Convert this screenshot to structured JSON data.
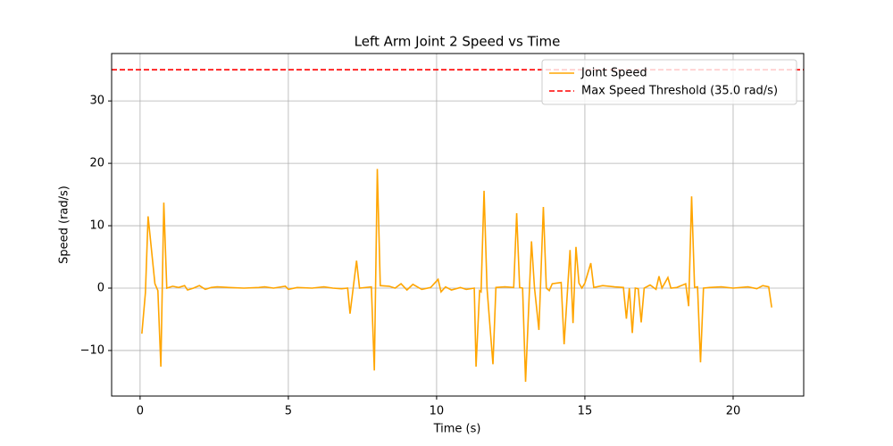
{
  "chart_data": {
    "type": "line",
    "title": "Left Arm Joint 2 Speed vs Time",
    "xlabel": "Time (s)",
    "ylabel": "Speed (rad/s)",
    "x": [
      0.06,
      0.18,
      0.27,
      0.5,
      0.6,
      0.7,
      0.8,
      0.9,
      1.1,
      1.3,
      1.5,
      1.6,
      1.8,
      2.0,
      2.2,
      2.4,
      2.6,
      3.0,
      3.5,
      4.0,
      4.2,
      4.5,
      4.9,
      5.0,
      5.3,
      5.8,
      6.2,
      6.5,
      6.8,
      7.0,
      7.08,
      7.3,
      7.4,
      7.8,
      7.9,
      8.0,
      8.1,
      8.4,
      8.6,
      8.8,
      9.0,
      9.2,
      9.5,
      9.8,
      10.05,
      10.15,
      10.3,
      10.5,
      10.8,
      11.0,
      11.27,
      11.33,
      11.45,
      11.5,
      11.6,
      11.7,
      11.9,
      12.0,
      12.3,
      12.6,
      12.7,
      12.8,
      12.9,
      13.0,
      13.2,
      13.3,
      13.45,
      13.6,
      13.7,
      13.8,
      13.9,
      14.2,
      14.3,
      14.5,
      14.6,
      14.7,
      14.8,
      14.9,
      15.0,
      15.2,
      15.3,
      15.6,
      16.0,
      16.3,
      16.4,
      16.5,
      16.6,
      16.7,
      16.8,
      16.9,
      17.0,
      17.2,
      17.4,
      17.5,
      17.6,
      17.8,
      17.9,
      18.1,
      18.4,
      18.5,
      18.6,
      18.7,
      18.8,
      18.9,
      19.0,
      19.2,
      19.6,
      20.0,
      20.5,
      20.8,
      21.0,
      21.2,
      21.3
    ],
    "series": [
      {
        "name": "Joint Speed",
        "color": "#ffa500",
        "values": [
          -7.3,
          -0.7,
          11.5,
          0.7,
          -0.4,
          -12.6,
          13.7,
          0,
          0.3,
          0.1,
          0.4,
          -0.3,
          0,
          0.4,
          -0.2,
          0.1,
          0.2,
          0.1,
          0,
          0.1,
          0.2,
          0,
          0.3,
          -0.2,
          0.1,
          0,
          0.2,
          0,
          -0.1,
          0,
          -4.1,
          4.4,
          0,
          0.2,
          -13.2,
          19.1,
          0.4,
          0.3,
          0,
          0.7,
          -0.3,
          0.6,
          -0.2,
          0.1,
          1.4,
          -0.6,
          0.2,
          -0.3,
          0.1,
          -0.2,
          0,
          -12.6,
          -0.4,
          -0.6,
          15.6,
          0,
          -12.2,
          0.1,
          0.2,
          0.1,
          12,
          0.1,
          0,
          -15,
          7.5,
          0.1,
          -6.7,
          13,
          0,
          -0.4,
          0.7,
          0.9,
          -9,
          6.1,
          -5.6,
          6.6,
          0.8,
          0,
          0.8,
          4,
          0.1,
          0.4,
          0.2,
          0.1,
          -4.9,
          0,
          -7.2,
          0,
          -0.1,
          -5.5,
          0,
          0.5,
          -0.2,
          1.9,
          0,
          1.7,
          0,
          0.1,
          0.7,
          -2.9,
          14.7,
          0.1,
          0.2,
          -11.9,
          0,
          0.1,
          0.2,
          0,
          0.2,
          -0.1,
          0.4,
          0.2,
          -3.1
        ]
      }
    ],
    "hlines": [
      {
        "name": "Max Speed Threshold (35.0 rad/s)",
        "y": 35,
        "color": "#ff0000",
        "linestyle": "dashed"
      }
    ],
    "xlim": [
      -0.96,
      22.38
    ],
    "ylim": [
      -17.3,
      37.6
    ],
    "xticks": [
      0,
      5,
      10,
      15,
      20
    ],
    "yticks": [
      {
        "value": -10,
        "label": "−10"
      },
      0,
      10,
      20,
      30
    ],
    "grid": true,
    "legend": "upper right"
  }
}
